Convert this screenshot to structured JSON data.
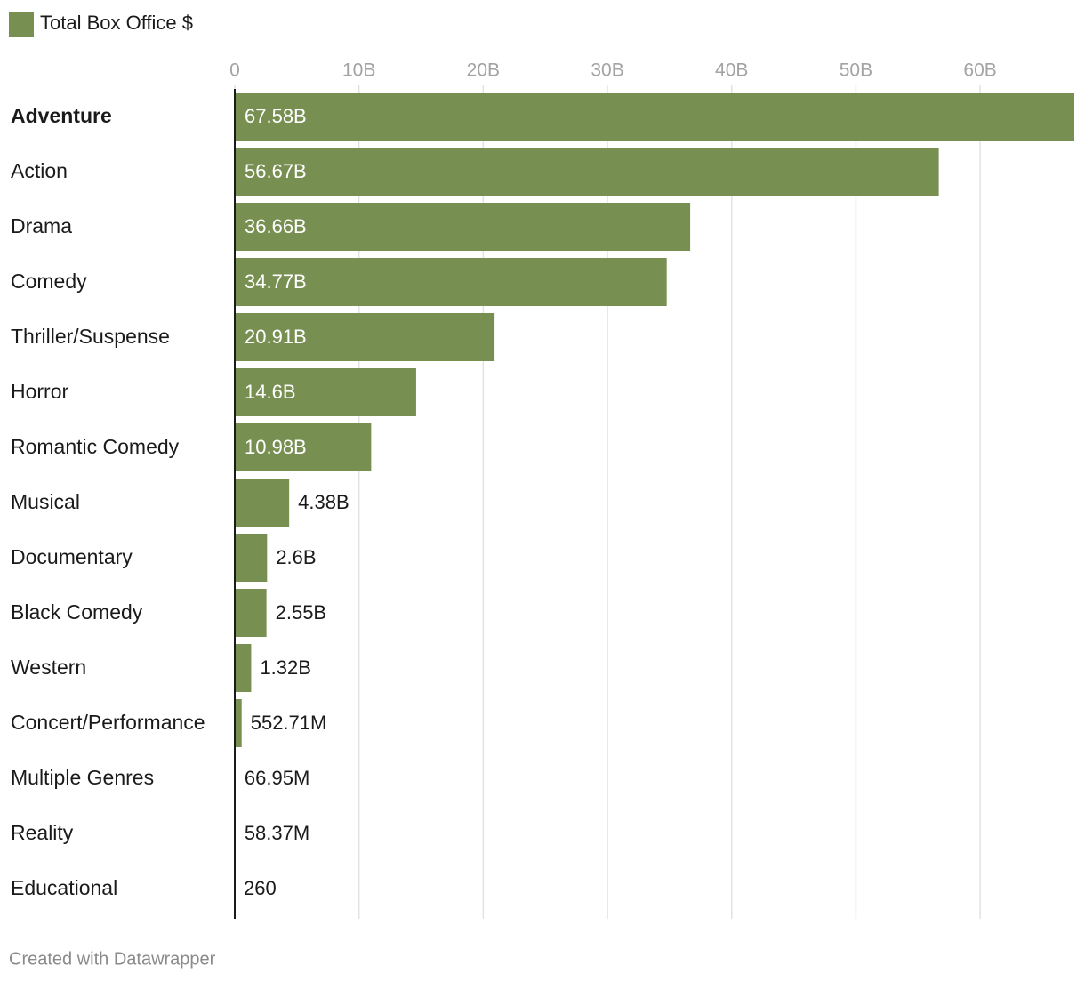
{
  "chart_data": {
    "type": "bar",
    "orientation": "horizontal",
    "categories": [
      "Adventure",
      "Action",
      "Drama",
      "Comedy",
      "Thriller/Suspense",
      "Horror",
      "Romantic Comedy",
      "Musical",
      "Documentary",
      "Black Comedy",
      "Western",
      "Concert/Performance",
      "Multiple Genres",
      "Reality",
      "Educational"
    ],
    "series": [
      {
        "name": "Total Box Office $",
        "color": "#778f51",
        "values": [
          67580000000,
          56670000000,
          36660000000,
          34770000000,
          20910000000,
          14600000000,
          10980000000,
          4380000000,
          2600000000,
          2550000000,
          1320000000,
          552710000,
          66950000,
          58370000,
          260
        ],
        "value_labels": [
          "67.58B",
          "56.67B",
          "36.66B",
          "34.77B",
          "20.91B",
          "14.6B",
          "10.98B",
          "4.38B",
          "2.6B",
          "2.55B",
          "1.32B",
          "552.71M",
          "66.95M",
          "58.37M",
          "260"
        ]
      }
    ],
    "xlim": [
      0,
      67580000000
    ],
    "xticks": [
      0,
      {
        "value": 10000000000,
        "label": "10B"
      },
      {
        "value": 20000000000,
        "label": "20B"
      },
      {
        "value": 30000000000,
        "label": "30B"
      },
      {
        "value": 40000000000,
        "label": "40B"
      },
      {
        "value": 50000000000,
        "label": "50B"
      },
      {
        "value": 60000000000,
        "label": "60B"
      }
    ],
    "grid": true,
    "legend": "top-left",
    "footer": "Created with Datawrapper"
  }
}
